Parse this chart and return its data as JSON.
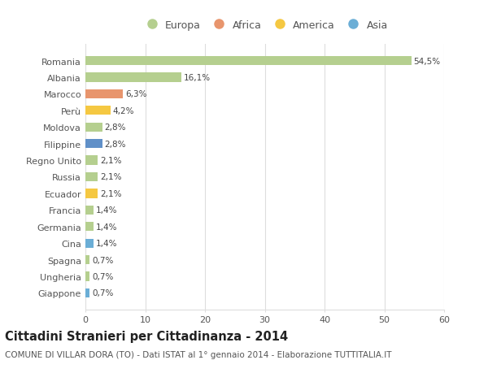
{
  "categories": [
    "Giappone",
    "Ungheria",
    "Spagna",
    "Cina",
    "Germania",
    "Francia",
    "Ecuador",
    "Russia",
    "Regno Unito",
    "Filippine",
    "Moldova",
    "Perù",
    "Marocco",
    "Albania",
    "Romania"
  ],
  "values": [
    0.7,
    0.7,
    0.7,
    1.4,
    1.4,
    1.4,
    2.1,
    2.1,
    2.1,
    2.8,
    2.8,
    4.2,
    6.3,
    16.1,
    54.5
  ],
  "labels": [
    "0,7%",
    "0,7%",
    "0,7%",
    "1,4%",
    "1,4%",
    "1,4%",
    "2,1%",
    "2,1%",
    "2,1%",
    "2,8%",
    "2,8%",
    "4,2%",
    "6,3%",
    "16,1%",
    "54,5%"
  ],
  "colors": [
    "#6baed6",
    "#b5cf8f",
    "#b5cf8f",
    "#6baed6",
    "#b5cf8f",
    "#b5cf8f",
    "#f5c842",
    "#b5cf8f",
    "#b5cf8f",
    "#6090c8",
    "#b5cf8f",
    "#f5c842",
    "#e8956d",
    "#b5cf8f",
    "#b5cf8f"
  ],
  "continents": [
    "Asia",
    "Europa",
    "Europa",
    "Asia",
    "Europa",
    "Europa",
    "America",
    "Europa",
    "Europa",
    "Asia",
    "Europa",
    "America",
    "Africa",
    "Europa",
    "Europa"
  ],
  "legend_labels": [
    "Europa",
    "Africa",
    "America",
    "Asia"
  ],
  "legend_colors": [
    "#b5cf8f",
    "#e8956d",
    "#f5c842",
    "#6baed6"
  ],
  "xlim": [
    0,
    60
  ],
  "xticks": [
    0,
    10,
    20,
    30,
    40,
    50,
    60
  ],
  "title": "Cittadini Stranieri per Cittadinanza - 2014",
  "subtitle": "COMUNE DI VILLAR DORA (TO) - Dati ISTAT al 1° gennaio 2014 - Elaborazione TUTTITALIA.IT",
  "background_color": "#ffffff",
  "grid_color": "#dddddd",
  "bar_height": 0.55,
  "label_fontsize": 7.5,
  "title_fontsize": 10.5,
  "subtitle_fontsize": 7.5,
  "tick_fontsize": 8,
  "legend_fontsize": 9
}
